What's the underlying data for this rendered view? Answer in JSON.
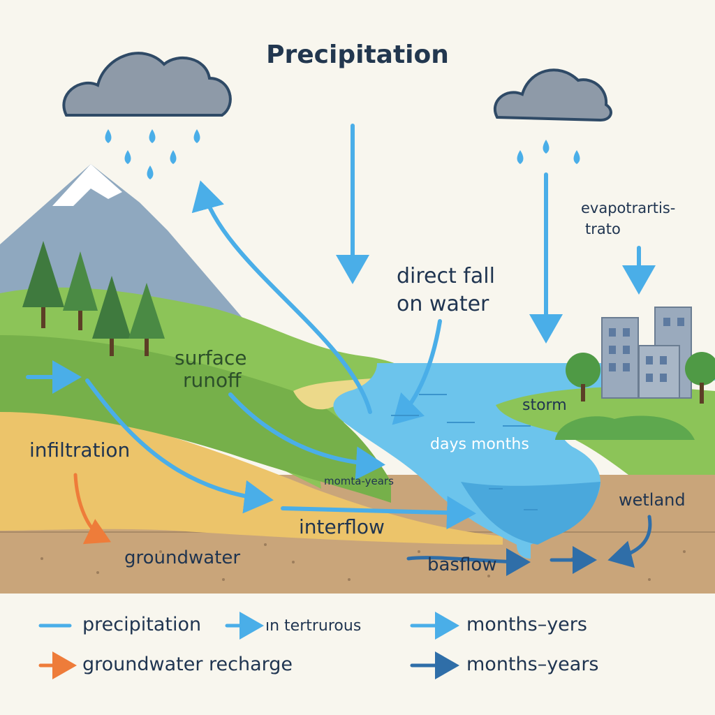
{
  "title": "Precipitation",
  "labels": {
    "direct_fall_1": "direct fall",
    "direct_fall_2": "on water",
    "evapo_1": "evapotrartis-",
    "evapo_2": "trato",
    "surface_runoff_1": "surface",
    "surface_runoff_2": "runoff",
    "infiltration": "infiltration",
    "storm": "storm",
    "days_months": "days months",
    "momta_years": "momta-years",
    "wetland": "wetland",
    "interflow": "interflow",
    "groundwater": "groundwater",
    "baseflow": "basflow"
  },
  "legend": [
    {
      "text": "precipitation",
      "color": "#4aaee8"
    },
    {
      "text": "ın tertrurous",
      "color": "#4aaee8"
    },
    {
      "text": "months–yers",
      "color": "#4aaee8"
    },
    {
      "text": "groundwater recharge",
      "color": "#ee7c3a"
    },
    {
      "text": "months–years",
      "color": "#2f6ea8"
    }
  ],
  "colors": {
    "arrow_blue": "#4aaee8",
    "arrow_dark": "#2f6ea8",
    "arrow_orange": "#ee7c3a",
    "water": "#6cc4ec",
    "grass": "#8cc458",
    "soil_yellow": "#ecc46a",
    "soil_brown": "#c9a57a",
    "cloud": "#8e9aa8"
  }
}
